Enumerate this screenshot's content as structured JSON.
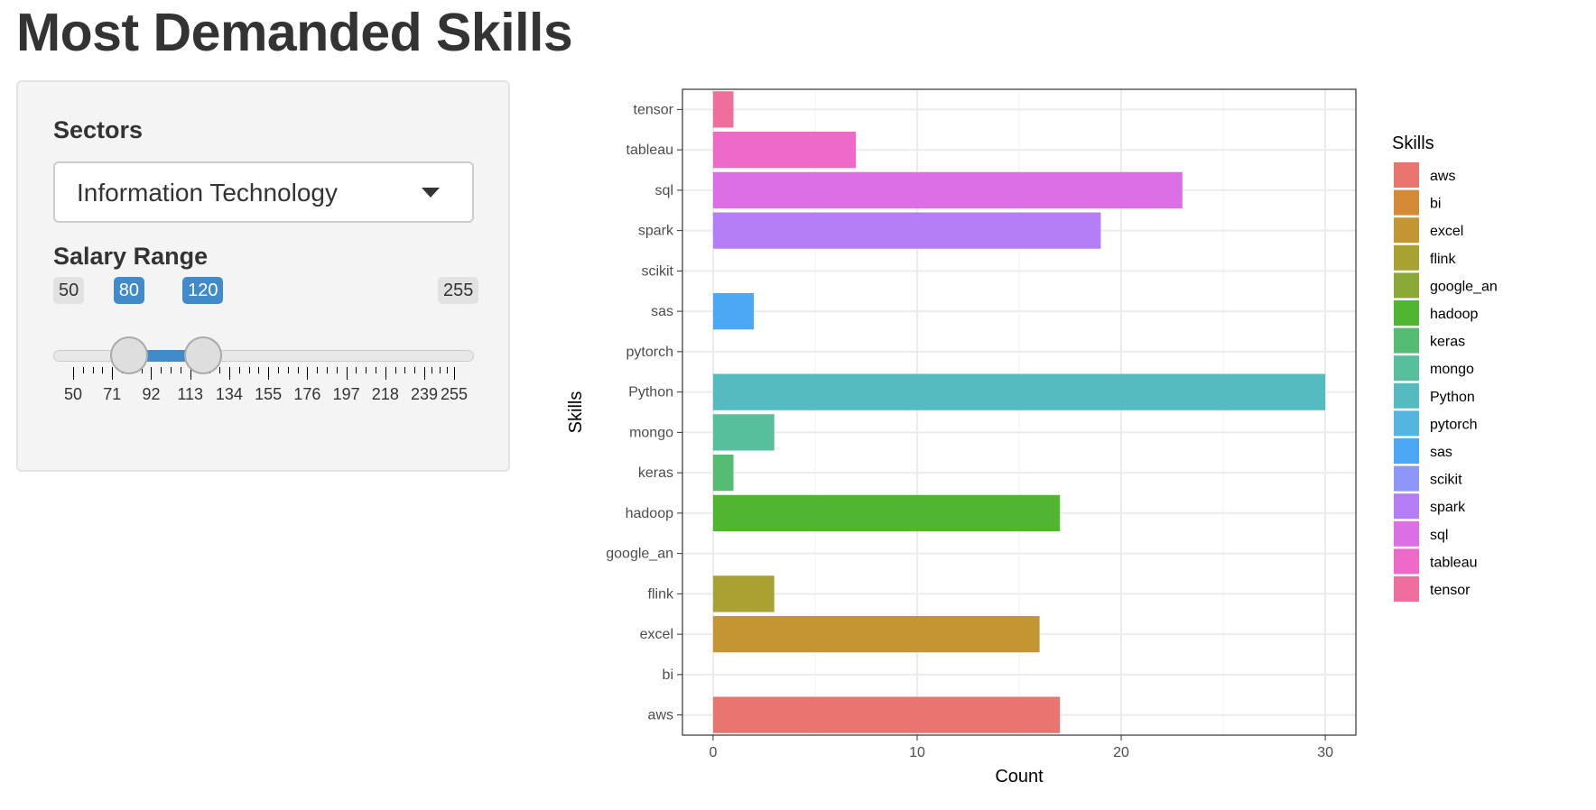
{
  "page": {
    "title": "Most Demanded Skills"
  },
  "sidebar": {
    "sectors": {
      "label": "Sectors",
      "selected": "Information Technology"
    },
    "salary": {
      "label": "Salary Range",
      "min": 50,
      "max": 255,
      "from": 80,
      "to": 120,
      "min_label": "50",
      "max_label": "255",
      "from_label": "80",
      "to_label": "120",
      "ticks": [
        50,
        71,
        92,
        113,
        134,
        155,
        176,
        197,
        218,
        239,
        255
      ],
      "tick_labels": [
        "50",
        "71",
        "92",
        "113",
        "134",
        "155",
        "176",
        "197",
        "218",
        "239",
        "255"
      ]
    }
  },
  "chart_data": {
    "type": "bar",
    "orientation": "horizontal",
    "categories": [
      "aws",
      "bi",
      "excel",
      "flink",
      "google_an",
      "hadoop",
      "keras",
      "mongo",
      "Python",
      "pytorch",
      "sas",
      "scikit",
      "spark",
      "sql",
      "tableau",
      "tensor"
    ],
    "values": [
      17,
      0,
      16,
      3,
      0,
      17,
      1,
      3,
      30,
      0,
      2,
      0,
      19,
      23,
      7,
      1
    ],
    "colors": [
      "#E7766F",
      "#D58B35",
      "#C39632",
      "#A8A232",
      "#8BAA35",
      "#50B530",
      "#55BC74",
      "#57BF9C",
      "#56BBC0",
      "#52B6E1",
      "#4BA8F5",
      "#8E97F9",
      "#B67EF6",
      "#DD6FE6",
      "#EE6AC8",
      "#F06E9E"
    ],
    "xlabel": "Count",
    "ylabel": "Skills",
    "xlim": [
      -1.5,
      31.5
    ],
    "xticks": [
      0,
      10,
      20,
      30
    ],
    "grid": true,
    "legend": {
      "title": "Skills",
      "position": "right"
    }
  }
}
